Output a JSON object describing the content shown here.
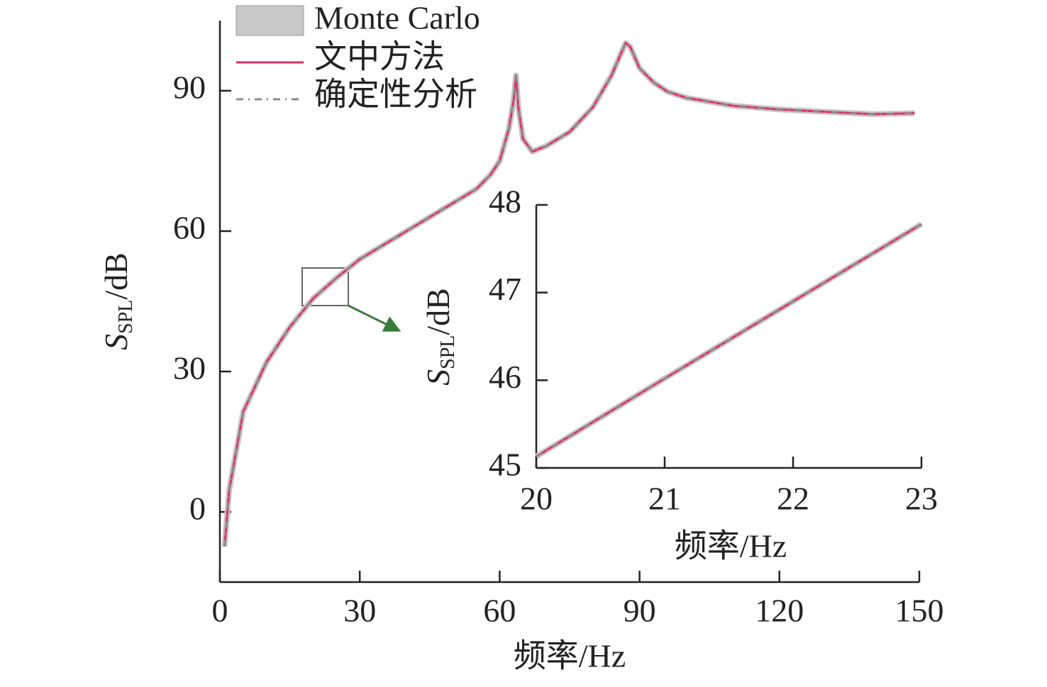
{
  "chart_data": [
    {
      "type": "line",
      "xlabel": "频率/Hz",
      "ylabel": [
        "S",
        "SPL",
        "/dB"
      ],
      "xlim": [
        0,
        150
      ],
      "ylim": [
        -15,
        105
      ],
      "xticks": [
        0,
        30,
        60,
        90,
        120,
        150
      ],
      "yticks": [
        0,
        30,
        60,
        90
      ],
      "x": [
        1,
        2,
        5,
        10,
        15,
        20,
        25,
        30,
        40,
        50,
        55,
        58,
        60,
        62,
        63,
        63.5,
        64,
        65,
        67,
        70,
        75,
        80,
        84,
        86,
        87,
        88,
        90,
        93,
        96,
        100,
        110,
        120,
        130,
        140,
        149
      ],
      "series": [
        {
          "name": "Monte Carlo",
          "color": "#c4c4c4",
          "style": "band",
          "values": [
            -7.4,
            4.7,
            21.4,
            32,
            39.5,
            45.6,
            50,
            54,
            60,
            66,
            69,
            72,
            75,
            82,
            88,
            93.3,
            86.5,
            79.7,
            77,
            78.2,
            81.2,
            86.5,
            93.3,
            97.9,
            100.2,
            99.4,
            94.8,
            91.8,
            89.8,
            88.5,
            86.8,
            86,
            85.5,
            85,
            85.2
          ]
        },
        {
          "name": "文中方法",
          "color": "#e0306a",
          "style": "solid",
          "values": [
            -7.4,
            4.7,
            21.4,
            32,
            39.5,
            45.6,
            50,
            54,
            60,
            66,
            69,
            72,
            75,
            82,
            88,
            93.3,
            86.5,
            79.7,
            77,
            78.2,
            81.2,
            86.5,
            93.3,
            97.9,
            100.2,
            99.4,
            94.8,
            91.8,
            89.8,
            88.5,
            86.8,
            86,
            85.5,
            85,
            85.2
          ]
        },
        {
          "name": "确定性分析",
          "color": "#8a8a8a",
          "style": "dashdot",
          "values": [
            -7.4,
            4.7,
            21.4,
            32,
            39.5,
            45.6,
            50,
            54,
            60,
            66,
            69,
            72,
            75,
            82,
            88,
            93.3,
            86.5,
            79.7,
            77,
            78.2,
            81.2,
            86.5,
            93.3,
            97.9,
            100.2,
            99.4,
            94.8,
            91.8,
            89.8,
            88.5,
            86.8,
            86,
            85.5,
            85,
            85.2
          ]
        }
      ]
    },
    {
      "type": "line",
      "xlabel": "频率/Hz",
      "ylabel": [
        "S",
        "SPL",
        "/dB"
      ],
      "xlim": [
        20,
        23
      ],
      "ylim": [
        45,
        48
      ],
      "xticks": [
        20,
        21,
        22,
        23
      ],
      "yticks": [
        45,
        46,
        47,
        48
      ],
      "x": [
        20,
        21,
        22,
        23
      ],
      "series": [
        {
          "color": "#c4c4c4",
          "style": "band",
          "values": [
            45.13,
            46.02,
            46.9,
            47.78
          ]
        },
        {
          "color": "#e0306a",
          "style": "solid",
          "values": [
            45.13,
            46.02,
            46.9,
            47.78
          ]
        },
        {
          "color": "#8a8a8a",
          "style": "dashdot",
          "values": [
            45.13,
            46.02,
            46.9,
            47.78
          ]
        }
      ]
    }
  ]
}
